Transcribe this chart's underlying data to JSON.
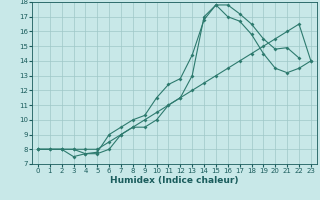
{
  "xlabel": "Humidex (Indice chaleur)",
  "ylabel": "",
  "bg_color": "#c8e8e8",
  "line_color": "#2d7a6e",
  "grid_color": "#9fc8c8",
  "text_color": "#1a5c5c",
  "xlim": [
    -0.5,
    23.5
  ],
  "ylim": [
    7,
    18
  ],
  "xticks": [
    0,
    1,
    2,
    3,
    4,
    5,
    6,
    7,
    8,
    9,
    10,
    11,
    12,
    13,
    14,
    15,
    16,
    17,
    18,
    19,
    20,
    21,
    22,
    23
  ],
  "yticks": [
    7,
    8,
    9,
    10,
    11,
    12,
    13,
    14,
    15,
    16,
    17,
    18
  ],
  "line1_x": [
    0,
    1,
    2,
    3,
    4,
    5,
    6,
    7,
    8,
    9,
    10,
    11,
    12,
    13,
    14,
    15,
    16,
    17,
    18,
    19,
    20,
    21,
    22
  ],
  "line1_y": [
    8.0,
    8.0,
    8.0,
    7.5,
    7.7,
    7.8,
    9.0,
    9.5,
    10.0,
    10.3,
    11.5,
    12.4,
    12.8,
    14.4,
    16.8,
    17.8,
    17.8,
    17.2,
    16.5,
    15.5,
    14.8,
    14.9,
    14.2
  ],
  "line2_x": [
    0,
    2,
    3,
    4,
    5,
    6,
    7,
    8,
    9,
    10,
    11,
    12,
    13,
    14,
    15,
    16,
    17,
    18,
    19,
    20,
    21,
    22,
    23
  ],
  "line2_y": [
    8.0,
    8.0,
    8.0,
    7.7,
    7.7,
    8.0,
    9.0,
    9.5,
    9.5,
    10.0,
    11.0,
    11.5,
    13.0,
    17.0,
    17.8,
    17.0,
    16.7,
    15.8,
    14.5,
    13.5,
    13.2,
    13.5,
    14.0
  ],
  "line3_x": [
    0,
    1,
    2,
    3,
    4,
    5,
    6,
    7,
    8,
    9,
    10,
    11,
    12,
    13,
    14,
    15,
    16,
    17,
    18,
    19,
    20,
    21,
    22,
    23
  ],
  "line3_y": [
    8.0,
    8.0,
    8.0,
    8.0,
    8.0,
    8.0,
    8.5,
    9.0,
    9.5,
    10.0,
    10.5,
    11.0,
    11.5,
    12.0,
    12.5,
    13.0,
    13.5,
    14.0,
    14.5,
    15.0,
    15.5,
    16.0,
    16.5,
    14.0
  ],
  "tick_fontsize": 5.0,
  "xlabel_fontsize": 6.5
}
